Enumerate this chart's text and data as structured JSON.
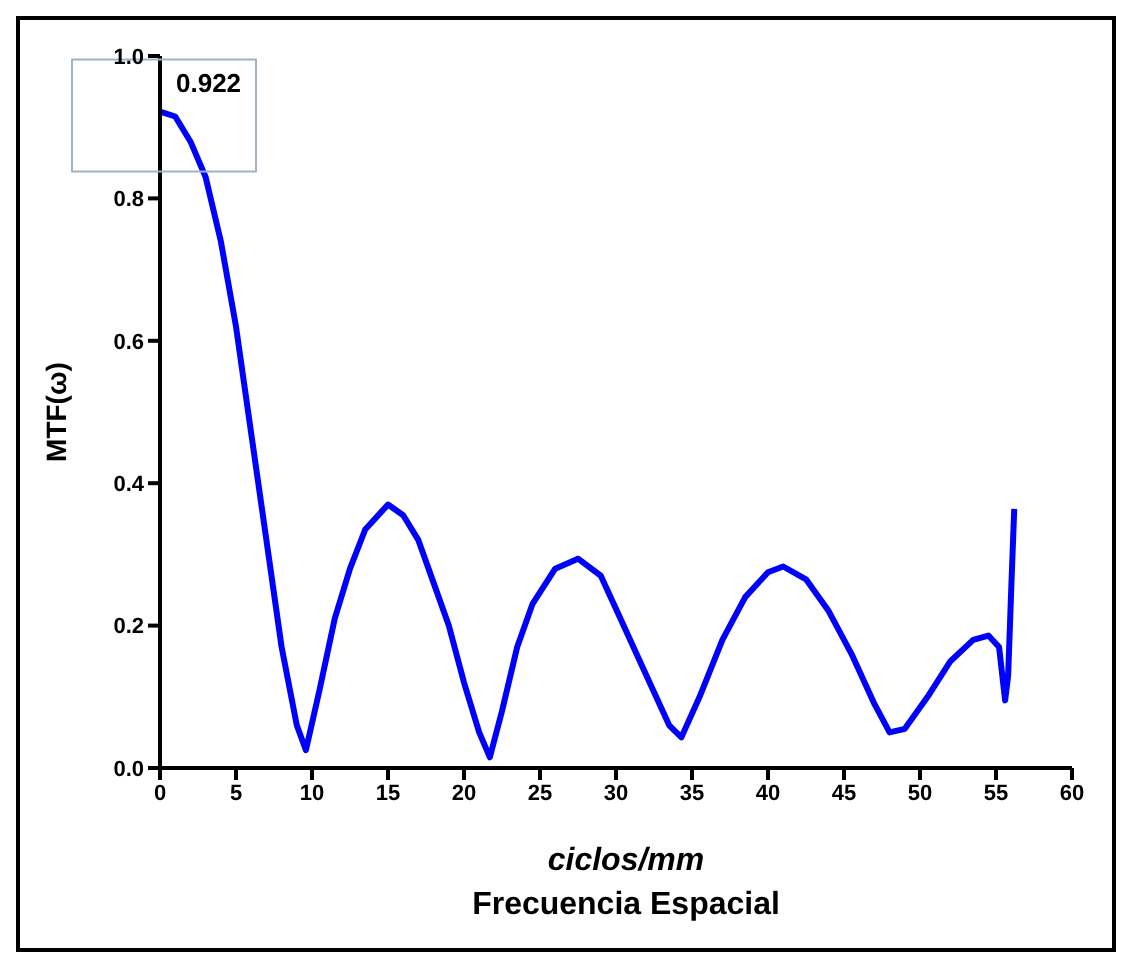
{
  "chart_data": {
    "type": "line",
    "xlabel": "ciclos/mm\nFrecuencia Espacial",
    "ylabel": "MTF(ω)",
    "xlim": [
      0,
      60
    ],
    "xticks": [
      0,
      5,
      10,
      15,
      20,
      25,
      30,
      35,
      40,
      45,
      50,
      55,
      60
    ],
    "ylim": [
      0,
      1
    ],
    "yticks": [
      {
        "value": 0,
        "label": "0.0"
      },
      0.2,
      0.4,
      0.6,
      0.8,
      {
        "value": 1,
        "label": "1.0"
      }
    ],
    "marker": "none",
    "line_style": "solid",
    "annotations": [
      {
        "text": "0.922",
        "x": 0,
        "y": 0.922
      }
    ],
    "series": [
      {
        "color": "#0000ff",
        "x": [
          0,
          1,
          2,
          3,
          4,
          5,
          6,
          7,
          8,
          9,
          9.6,
          10.5,
          11.5,
          12.5,
          13.5,
          15,
          16,
          17,
          18,
          19,
          20,
          21,
          21.7,
          22.5,
          23.5,
          24.5,
          26,
          27.5,
          29,
          30.5,
          32,
          33.5,
          34.3,
          35.5,
          37,
          38.5,
          40,
          41,
          42.5,
          44,
          45.5,
          47,
          48,
          49,
          50.5,
          52,
          53.5,
          54.5,
          55.2,
          55.6,
          55.8,
          56,
          56.2
        ],
        "values": [
          0.922,
          0.915,
          0.88,
          0.83,
          0.74,
          0.62,
          0.47,
          0.32,
          0.17,
          0.06,
          0.025,
          0.11,
          0.21,
          0.28,
          0.335,
          0.37,
          0.355,
          0.32,
          0.26,
          0.2,
          0.12,
          0.05,
          0.015,
          0.08,
          0.17,
          0.23,
          0.28,
          0.294,
          0.27,
          0.2,
          0.13,
          0.06,
          0.043,
          0.1,
          0.18,
          0.24,
          0.275,
          0.283,
          0.265,
          0.22,
          0.16,
          0.09,
          0.05,
          0.055,
          0.1,
          0.15,
          0.18,
          0.186,
          0.17,
          0.095,
          0.13,
          0.25,
          0.364
        ]
      }
    ]
  }
}
